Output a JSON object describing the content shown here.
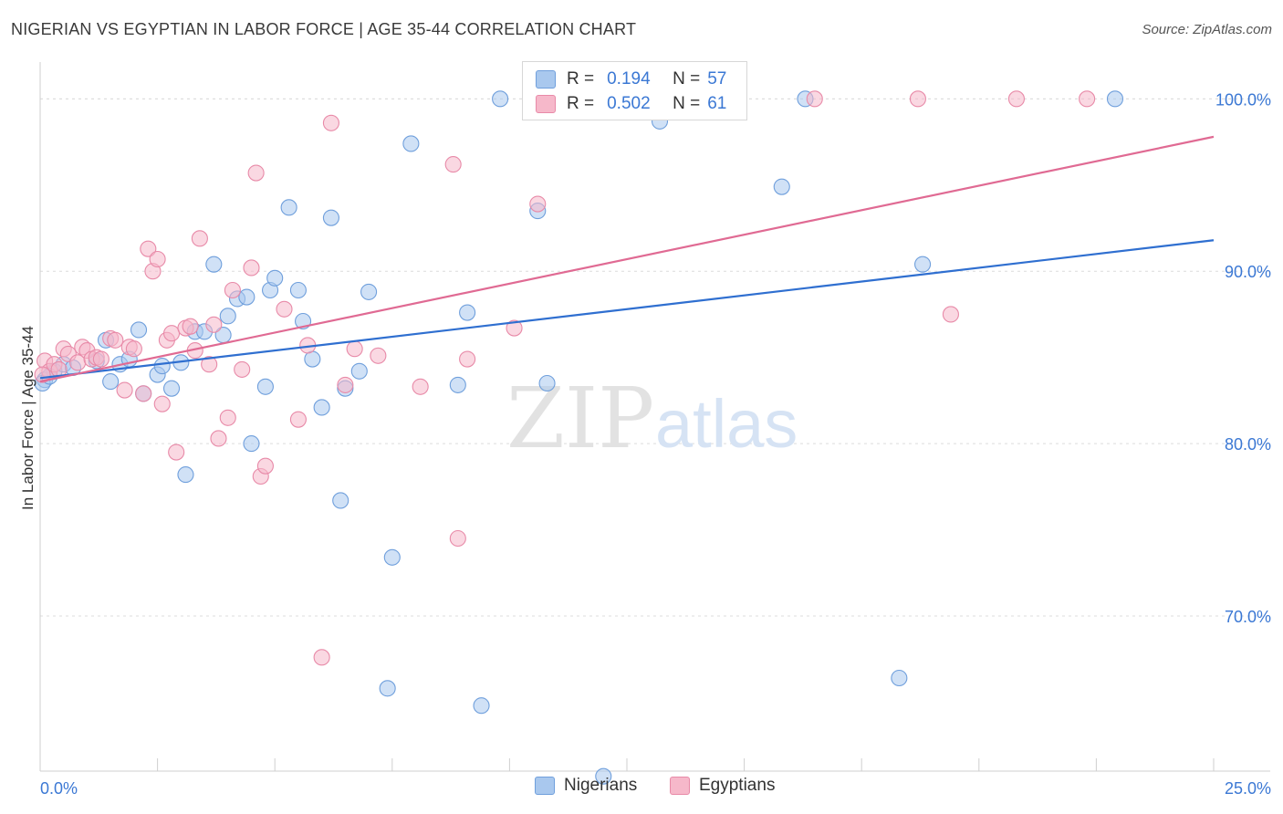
{
  "header": {
    "title": "NIGERIAN VS EGYPTIAN IN LABOR FORCE | AGE 35-44 CORRELATION CHART",
    "source": "Source: ZipAtlas.com"
  },
  "legend": {
    "rows": [
      {
        "r_label": "R =",
        "r_value": "0.194",
        "n_label": "N =",
        "n_value": "57"
      },
      {
        "r_label": "R =",
        "r_value": "0.502",
        "n_label": "N =",
        "n_value": "61"
      }
    ]
  },
  "colors": {
    "nigerians_fill": "#a9c8ee",
    "nigerians_stroke": "#6f9fdc",
    "nigerians_line": "#2f6fd0",
    "egyptians_fill": "#f6b8ca",
    "egyptians_stroke": "#e88aa8",
    "egyptians_line": "#e06a93",
    "axis_label": "#3b78d4"
  },
  "watermark": {
    "zip": "ZIP",
    "atlas": "atlas"
  },
  "chart_data": {
    "type": "scatter",
    "title": "NIGERIAN VS EGYPTIAN IN LABOR FORCE | AGE 35-44 CORRELATION CHART",
    "xlabel": "",
    "ylabel": "In Labor Force | Age 35-44",
    "xlim": [
      0,
      25
    ],
    "ylim": [
      61,
      101.5
    ],
    "x_tick_labels": [
      "0.0%",
      "25.0%"
    ],
    "y_ticks": [
      70,
      80,
      90,
      100
    ],
    "y_tick_labels": [
      "70.0%",
      "80.0%",
      "90.0%",
      "100.0%"
    ],
    "grid": true,
    "legend_position": "top-center",
    "series": [
      {
        "name": "Nigerians",
        "R": 0.194,
        "N": 57,
        "trend": {
          "x": [
            0,
            25
          ],
          "y": [
            83.8,
            91.8
          ]
        },
        "points": [
          [
            0.1,
            83.7
          ],
          [
            0.3,
            84.2
          ],
          [
            0.5,
            84.6
          ],
          [
            0.7,
            84.4
          ],
          [
            1.2,
            84.8
          ],
          [
            1.5,
            83.6
          ],
          [
            1.7,
            84.6
          ],
          [
            1.4,
            86.0
          ],
          [
            1.9,
            84.9
          ],
          [
            2.1,
            86.6
          ],
          [
            2.2,
            82.9
          ],
          [
            2.5,
            84.0
          ],
          [
            2.6,
            84.5
          ],
          [
            2.8,
            83.2
          ],
          [
            3.0,
            84.7
          ],
          [
            3.1,
            78.2
          ],
          [
            3.3,
            86.5
          ],
          [
            3.5,
            86.5
          ],
          [
            3.7,
            90.4
          ],
          [
            3.9,
            86.3
          ],
          [
            4.0,
            87.4
          ],
          [
            4.2,
            88.4
          ],
          [
            4.4,
            88.5
          ],
          [
            4.5,
            80.0
          ],
          [
            4.8,
            83.3
          ],
          [
            4.9,
            88.9
          ],
          [
            5.0,
            89.6
          ],
          [
            5.3,
            93.7
          ],
          [
            5.5,
            88.9
          ],
          [
            5.6,
            87.1
          ],
          [
            5.8,
            84.9
          ],
          [
            6.0,
            82.1
          ],
          [
            6.2,
            93.1
          ],
          [
            6.4,
            76.7
          ],
          [
            6.5,
            83.2
          ],
          [
            6.8,
            84.2
          ],
          [
            7.0,
            88.8
          ],
          [
            7.5,
            73.4
          ],
          [
            7.4,
            65.8
          ],
          [
            7.9,
            97.4
          ],
          [
            8.9,
            83.4
          ],
          [
            9.1,
            87.6
          ],
          [
            9.4,
            64.8
          ],
          [
            9.8,
            100.0
          ],
          [
            10.6,
            93.5
          ],
          [
            10.8,
            83.5
          ],
          [
            11.6,
            100.0
          ],
          [
            12.0,
            60.7
          ],
          [
            12.1,
            100.0
          ],
          [
            13.2,
            98.7
          ],
          [
            15.8,
            94.9
          ],
          [
            16.3,
            100.0
          ],
          [
            18.3,
            66.4
          ],
          [
            18.8,
            90.4
          ],
          [
            22.9,
            100.0
          ],
          [
            0.05,
            83.5
          ],
          [
            0.2,
            83.9
          ]
        ]
      },
      {
        "name": "Egyptians",
        "R": 0.502,
        "N": 61,
        "trend": {
          "x": [
            0,
            25
          ],
          "y": [
            83.6,
            97.8
          ]
        },
        "points": [
          [
            0.1,
            84.8
          ],
          [
            0.2,
            84.2
          ],
          [
            0.3,
            84.6
          ],
          [
            0.4,
            84.3
          ],
          [
            0.5,
            85.5
          ],
          [
            0.6,
            85.2
          ],
          [
            0.8,
            84.7
          ],
          [
            0.9,
            85.6
          ],
          [
            1.0,
            85.4
          ],
          [
            1.1,
            84.9
          ],
          [
            1.2,
            85.0
          ],
          [
            1.3,
            84.9
          ],
          [
            1.5,
            86.1
          ],
          [
            1.6,
            86.0
          ],
          [
            1.8,
            83.1
          ],
          [
            1.9,
            85.6
          ],
          [
            2.0,
            85.5
          ],
          [
            2.2,
            82.9
          ],
          [
            2.3,
            91.3
          ],
          [
            2.4,
            90.0
          ],
          [
            2.5,
            90.7
          ],
          [
            2.6,
            82.3
          ],
          [
            2.7,
            86.0
          ],
          [
            2.8,
            86.4
          ],
          [
            2.9,
            79.5
          ],
          [
            3.1,
            86.7
          ],
          [
            3.2,
            86.8
          ],
          [
            3.3,
            85.4
          ],
          [
            3.4,
            91.9
          ],
          [
            3.6,
            84.6
          ],
          [
            3.7,
            86.9
          ],
          [
            3.8,
            80.3
          ],
          [
            4.0,
            81.5
          ],
          [
            4.1,
            88.9
          ],
          [
            4.3,
            84.3
          ],
          [
            4.5,
            90.2
          ],
          [
            4.6,
            95.7
          ],
          [
            4.7,
            78.1
          ],
          [
            4.8,
            78.7
          ],
          [
            5.2,
            87.8
          ],
          [
            5.5,
            81.4
          ],
          [
            5.7,
            85.7
          ],
          [
            6.0,
            67.6
          ],
          [
            6.2,
            98.6
          ],
          [
            6.5,
            83.4
          ],
          [
            6.7,
            85.5
          ],
          [
            7.2,
            85.1
          ],
          [
            8.1,
            83.3
          ],
          [
            8.8,
            96.2
          ],
          [
            8.9,
            74.5
          ],
          [
            9.1,
            84.9
          ],
          [
            10.1,
            86.7
          ],
          [
            10.6,
            93.9
          ],
          [
            12.8,
            100.0
          ],
          [
            13.4,
            100.0
          ],
          [
            16.5,
            100.0
          ],
          [
            19.4,
            87.5
          ],
          [
            18.7,
            100.0
          ],
          [
            20.8,
            100.0
          ],
          [
            22.3,
            100.0
          ],
          [
            0.05,
            84.0
          ]
        ]
      }
    ]
  },
  "bottom_legend": {
    "items": [
      "Nigerians",
      "Egyptians"
    ]
  }
}
